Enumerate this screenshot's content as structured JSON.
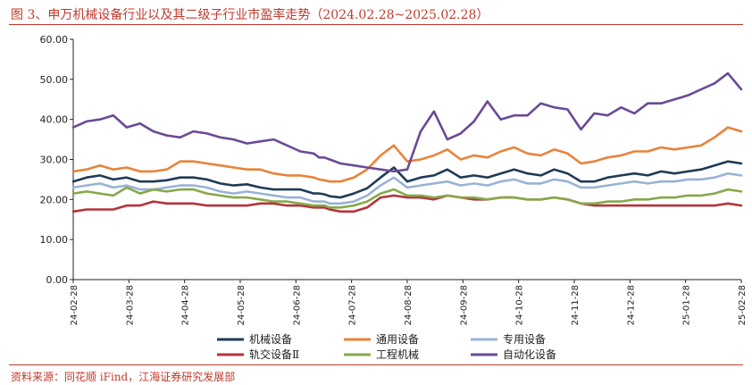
{
  "header": {
    "title": "图 3、申万机械设备行业以及其二级子行业市盈率走势（2024.02.28~2025.02.28）"
  },
  "footer": {
    "source": "资料来源：同花顺 iFind，江海证券研究发展部"
  },
  "chart_data": {
    "type": "line",
    "title": "",
    "xlabel": "",
    "ylabel": "",
    "ylim": [
      0,
      60
    ],
    "yticks": [
      "0.00",
      "10.00",
      "20.00",
      "30.00",
      "40.00",
      "50.00",
      "60.00"
    ],
    "xticks": [
      "24-02-28",
      "24-03-28",
      "24-04-28",
      "24-05-28",
      "24-06-28",
      "24-07-28",
      "24-08-28",
      "24-09-28",
      "24-10-28",
      "24-11-28",
      "24-12-28",
      "25-01-28",
      "25-02-28"
    ],
    "grid": false,
    "legend": "bottom",
    "x": [
      0,
      0.5,
      1,
      1.5,
      2,
      2.5,
      3,
      3.5,
      4,
      4.5,
      5,
      5.5,
      6,
      6.5,
      7,
      7.5,
      8,
      8.5,
      9,
      9.2,
      9.4,
      9.6,
      10,
      10.5,
      11,
      11.5,
      12,
      12.5,
      13,
      13.5,
      14,
      14.5,
      15,
      15.5,
      16,
      16.5,
      17,
      17.5,
      18,
      18.5,
      19,
      19.5,
      20,
      20.5,
      21,
      21.5,
      22,
      22.5,
      23,
      23.5,
      24,
      24.5,
      25
    ],
    "series": [
      {
        "name": "机械设备",
        "color": "#1f3b57",
        "values": [
          24.5,
          25.5,
          26,
          25,
          25.5,
          24.5,
          24.5,
          24.8,
          25.5,
          25.5,
          25,
          24,
          23.5,
          23.8,
          23,
          22.5,
          22.5,
          22.5,
          21.5,
          21.5,
          21.3,
          20.8,
          20.5,
          21.5,
          22.8,
          25.5,
          28,
          24.5,
          25.5,
          26,
          27.5,
          25.5,
          26,
          25.5,
          26.5,
          27.5,
          26.5,
          26,
          27.5,
          26.5,
          24.5,
          24.5,
          25.5,
          26,
          26.5,
          26,
          27,
          26.5,
          27,
          27.5,
          28.5,
          29.5,
          29
        ]
      },
      {
        "name": "通用设备",
        "color": "#e8833a",
        "values": [
          27,
          27.5,
          28.5,
          27.5,
          28,
          27,
          27,
          27.5,
          29.5,
          29.5,
          29,
          28.5,
          28,
          27.5,
          27.5,
          26.5,
          26,
          26,
          25.5,
          25,
          24.8,
          24.5,
          24.5,
          25.5,
          27.5,
          31,
          33.5,
          29.5,
          30,
          31,
          32.5,
          30,
          31,
          30.5,
          32,
          33,
          31.5,
          31,
          32.5,
          31.5,
          29,
          29.5,
          30.5,
          31,
          32,
          32,
          33,
          32.5,
          33,
          33.5,
          35.5,
          38,
          37
        ]
      },
      {
        "name": "专用设备",
        "color": "#99b2d6",
        "values": [
          23,
          23.5,
          24,
          23,
          23.5,
          22.5,
          22.5,
          23,
          23.5,
          23.5,
          23,
          22,
          21.5,
          22,
          21.5,
          21,
          20.5,
          20.5,
          19.5,
          19.5,
          19.5,
          19,
          19,
          19.5,
          21,
          23.5,
          25.5,
          23,
          23.5,
          24,
          24.5,
          23.5,
          24,
          23.5,
          24.5,
          25,
          24,
          24,
          25,
          24.5,
          23,
          23,
          23.5,
          24,
          24.5,
          24,
          24.5,
          24.5,
          25,
          25,
          25.5,
          26.5,
          26
        ]
      },
      {
        "name": "轨交设备Ⅱ",
        "color": "#b5323a",
        "values": [
          17,
          17.5,
          17.5,
          17.5,
          18.5,
          18.5,
          19.5,
          19,
          19,
          19,
          18.5,
          18.5,
          18.5,
          18.5,
          19,
          19,
          18.5,
          18.5,
          18,
          18,
          18,
          17.5,
          17,
          17,
          18,
          20.5,
          21,
          20.5,
          20.5,
          20,
          21,
          20.5,
          20,
          20,
          20.5,
          20.5,
          20,
          20,
          20.5,
          20,
          19,
          18.5,
          18.5,
          18.5,
          18.5,
          18.5,
          18.5,
          18.5,
          18.5,
          18.5,
          18.5,
          19,
          18.5
        ]
      },
      {
        "name": "工程机械",
        "color": "#86a84a",
        "values": [
          21.5,
          22,
          21.5,
          21,
          23,
          21.5,
          22.5,
          22,
          22.5,
          22.5,
          21.5,
          21,
          20.5,
          20.5,
          20,
          19.5,
          19.5,
          19,
          18.5,
          18.5,
          18.5,
          18,
          18,
          18.5,
          19.5,
          21.5,
          22.5,
          21,
          21,
          20.5,
          21,
          20.5,
          20.5,
          20,
          20.5,
          20.5,
          20,
          20,
          20.5,
          20,
          19,
          19,
          19.5,
          19.5,
          20,
          20,
          20.5,
          20.5,
          21,
          21,
          21.5,
          22.5,
          22
        ]
      },
      {
        "name": "自动化设备",
        "color": "#6a4a96",
        "values": [
          38,
          39.5,
          40,
          41,
          38,
          39,
          37,
          36,
          35.5,
          37,
          36.5,
          35.5,
          35,
          34,
          34.5,
          35,
          33.5,
          32,
          31.5,
          30.5,
          30.5,
          30,
          29,
          28.5,
          28,
          27.5,
          27,
          27.5,
          37,
          42,
          35,
          36.5,
          39.5,
          44.5,
          40,
          41,
          41,
          44,
          43,
          42.5,
          37.5,
          41.5,
          41,
          43,
          41.5,
          44,
          44,
          45,
          46,
          47.5,
          49,
          51.5,
          47.5
        ]
      }
    ]
  }
}
